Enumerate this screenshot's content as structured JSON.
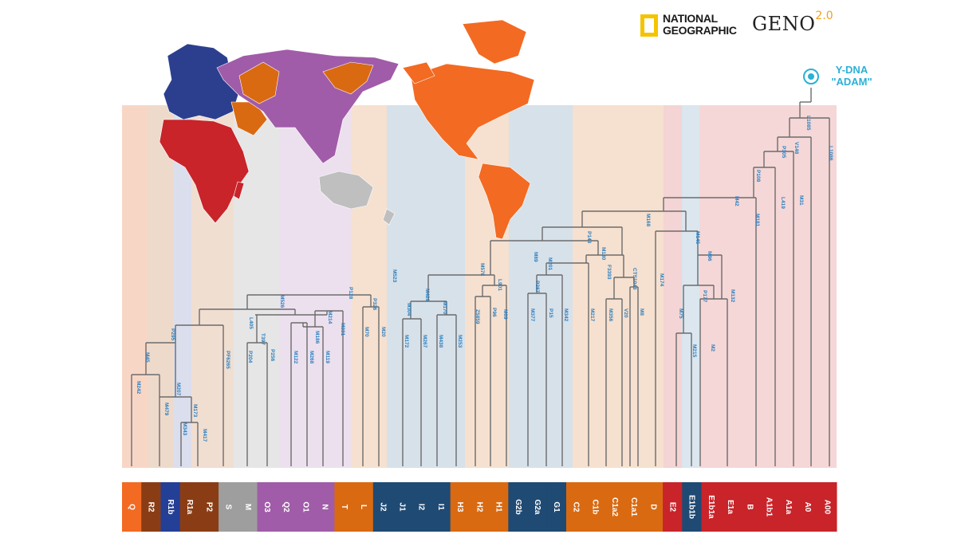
{
  "logos": {
    "natgeo_line1": "NATIONAL",
    "natgeo_line2": "GEOGRAPHIC",
    "geno_main": "GENO",
    "geno_sup": "2.0"
  },
  "root": {
    "line1": "Y-DNA",
    "line2": "\"ADAM\""
  },
  "colors": {
    "orange_light": "#f37321",
    "orange_dark": "#d96a12",
    "rust": "#a0481c",
    "navy": "#2c3f8f",
    "grey": "#9e9e9e",
    "purple": "#a05ca8",
    "teal_navy": "#1f4a73",
    "red": "#c8242a",
    "tree_line": "#6c6c6c",
    "marker_text": "#2a7fc0",
    "root_cyan": "#2bb0d6"
  },
  "haplogroups": [
    {
      "label": "Q",
      "color": "#f36a22"
    },
    {
      "label": "R2",
      "color": "#8a3d14"
    },
    {
      "label": "R1b",
      "color": "#243f96"
    },
    {
      "label": "R1a",
      "color": "#8a3d14"
    },
    {
      "label": "P2",
      "color": "#8a3d14"
    },
    {
      "label": "S",
      "color": "#9e9e9e"
    },
    {
      "label": "M",
      "color": "#9e9e9e"
    },
    {
      "label": "O3",
      "color": "#a05ca8"
    },
    {
      "label": "Q2",
      "color": "#a05ca8"
    },
    {
      "label": "O1",
      "color": "#a05ca8"
    },
    {
      "label": "N",
      "color": "#a05ca8"
    },
    {
      "label": "T",
      "color": "#d96a12"
    },
    {
      "label": "L",
      "color": "#d96a12"
    },
    {
      "label": "J2",
      "color": "#1f4a73"
    },
    {
      "label": "J1",
      "color": "#1f4a73"
    },
    {
      "label": "I2",
      "color": "#1f4a73"
    },
    {
      "label": "I1",
      "color": "#1f4a73"
    },
    {
      "label": "H3",
      "color": "#d96a12"
    },
    {
      "label": "H2",
      "color": "#d96a12"
    },
    {
      "label": "H1",
      "color": "#d96a12"
    },
    {
      "label": "G2b",
      "color": "#1f4a73"
    },
    {
      "label": "G2a",
      "color": "#1f4a73"
    },
    {
      "label": "G1",
      "color": "#1f4a73"
    },
    {
      "label": "C2",
      "color": "#d96a12"
    },
    {
      "label": "C1b",
      "color": "#d96a12"
    },
    {
      "label": "C1a2",
      "color": "#d96a12"
    },
    {
      "label": "C1a1",
      "color": "#d96a12"
    },
    {
      "label": "D",
      "color": "#d96a12"
    },
    {
      "label": "E2",
      "color": "#c8242a"
    },
    {
      "label": "E1b1b",
      "color": "#1f4a73"
    },
    {
      "label": "E1b1a",
      "color": "#c8242a"
    },
    {
      "label": "E1a",
      "color": "#c8242a"
    },
    {
      "label": "B",
      "color": "#c8242a"
    },
    {
      "label": "A1b1",
      "color": "#c8242a"
    },
    {
      "label": "A1a",
      "color": "#c8242a"
    },
    {
      "label": "A0",
      "color": "#c8242a"
    },
    {
      "label": "A00",
      "color": "#c8242a"
    }
  ],
  "markers": [
    "M242",
    "M45",
    "M479",
    "M207",
    "M343",
    "M173",
    "M417",
    "P295",
    "M526",
    "L405",
    "P204",
    "T397",
    "P256",
    "PF6265",
    "M122",
    "M268",
    "M186",
    "M119",
    "M214",
    "M231",
    "P128",
    "M70",
    "P326",
    "M20",
    "M523",
    "M172",
    "M267",
    "M304",
    "M429",
    "M438",
    "M253",
    "M170",
    "M578",
    "Z5859",
    "P96",
    "L901",
    "M69",
    "M89",
    "M377",
    "P287",
    "P15",
    "M201",
    "M342",
    "P143",
    "M130",
    "M217",
    "M356",
    "F3393",
    "V20",
    "CTS1043",
    "M8",
    "M168",
    "M174",
    "M145",
    "M96",
    "M75",
    "M215",
    "P177",
    "M2",
    "M132",
    "M42",
    "P108",
    "M181",
    "L419",
    "P305",
    "M31",
    "V148",
    "L1085",
    "L1086"
  ]
}
